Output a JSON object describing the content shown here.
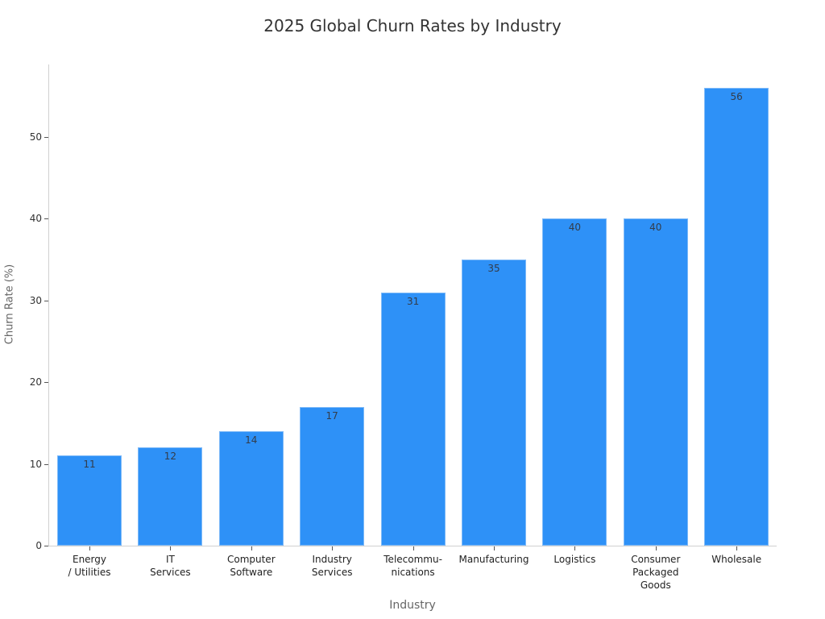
{
  "chart_data": {
    "type": "bar",
    "title": "2025 Global Churn Rates by Industry",
    "xlabel": "Industry",
    "ylabel": "Churn Rate (%)",
    "categories": [
      "Energy\n/ Utilities",
      "IT\nServices",
      "Computer\nSoftware",
      "Industry\nServices",
      "Telecommu-\nnications",
      "Manufacturing",
      "Logistics",
      "Consumer\nPackaged\nGoods",
      "Wholesale"
    ],
    "values": [
      11,
      12,
      14,
      17,
      31,
      35,
      40,
      40,
      56
    ],
    "yticks": [
      0,
      10,
      20,
      30,
      40,
      50
    ],
    "ylim": [
      0,
      59
    ],
    "grid": false,
    "legend": "none",
    "data_labels": true,
    "bar_color": "#2e91f7"
  }
}
